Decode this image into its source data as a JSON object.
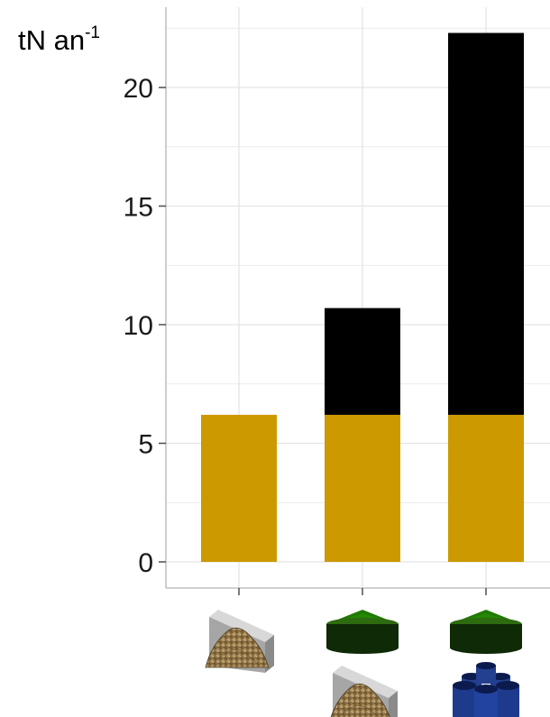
{
  "chart_data": {
    "type": "bar",
    "stacked": true,
    "ylabel": "tN an",
    "ylabel_sup": "-1",
    "ylim": [
      0,
      23
    ],
    "yticks": [
      0,
      5,
      10,
      15,
      20
    ],
    "grid": true,
    "categories": [
      {
        "icons": [
          "manure-heap-icon"
        ]
      },
      {
        "icons": [
          "digester-icon",
          "manure-heap-icon"
        ]
      },
      {
        "icons": [
          "digester-icon",
          "storage-tanks-icon"
        ]
      }
    ],
    "series": [
      {
        "color": "#cc9900",
        "values": [
          6.2,
          6.2,
          6.2
        ]
      },
      {
        "color": "#000000",
        "values": [
          0,
          4.5,
          16.1
        ]
      }
    ]
  }
}
